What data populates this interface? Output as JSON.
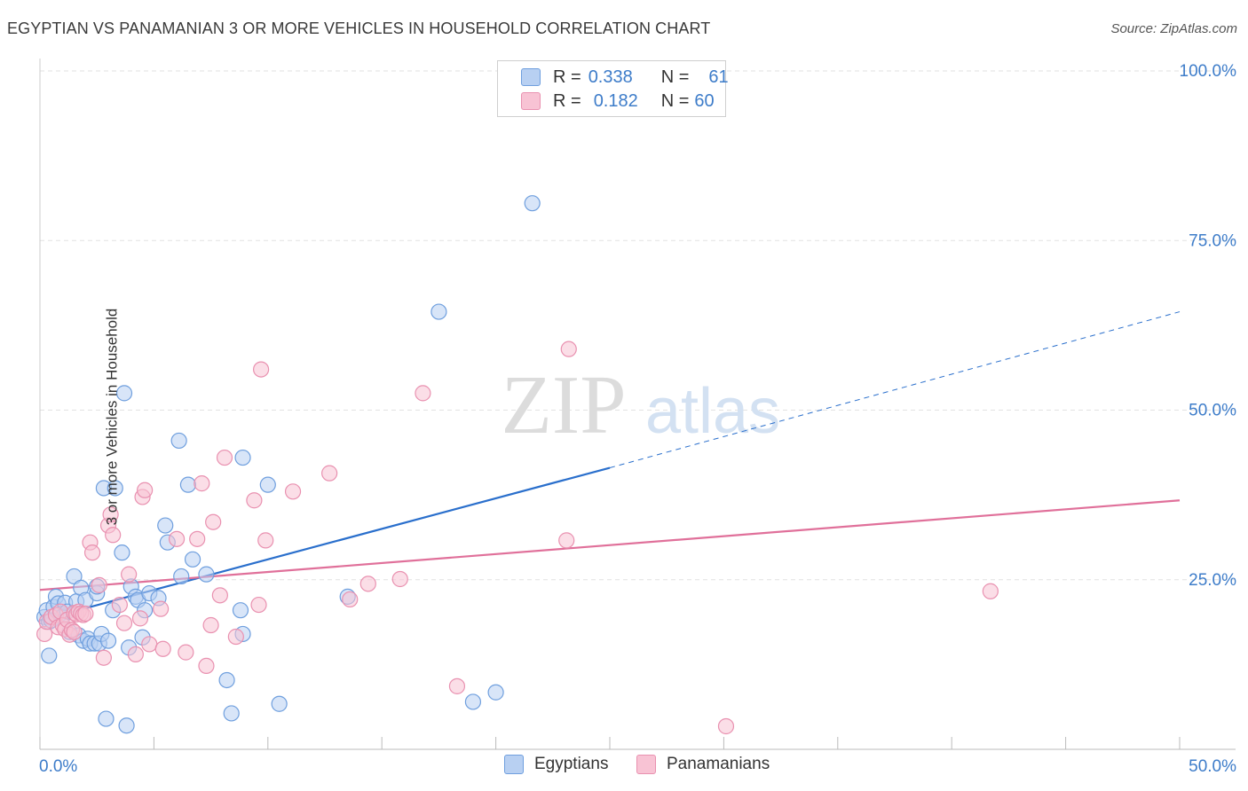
{
  "title": "EGYPTIAN VS PANAMANIAN 3 OR MORE VEHICLES IN HOUSEHOLD CORRELATION CHART",
  "source": "Source: ZipAtlas.com",
  "watermark": {
    "zip": "ZIP",
    "atlas": "atlas"
  },
  "legend": {
    "egyptians": {
      "r_label": "R =",
      "r_value": "0.338",
      "n_label": "N =",
      "n_value": "61"
    },
    "panamanians": {
      "r_label": "R =",
      "r_value": "0.182",
      "n_label": "N =",
      "n_value": "60"
    }
  },
  "colors": {
    "egyptians_fill": "#b8d0f2",
    "egyptians_stroke": "#6f9fde",
    "egyptians_line": "#2a6fcc",
    "panamanians_fill": "#f8c3d4",
    "panamanians_stroke": "#e991b0",
    "panamanians_line": "#e0709a",
    "tick_label": "#3d7cc9",
    "grid": "#e2e2e2"
  },
  "chart_data": {
    "type": "scatter",
    "xlabel": "",
    "ylabel": "3 or more Vehicles in Household",
    "xlim": [
      0,
      50
    ],
    "ylim": [
      0,
      100
    ],
    "x_tick_labels": [
      {
        "value": 0,
        "label": "0.0%"
      },
      {
        "value": 50,
        "label": "50.0%"
      }
    ],
    "y_tick_labels": [
      {
        "value": 25,
        "label": "25.0%"
      },
      {
        "value": 50,
        "label": "50.0%"
      },
      {
        "value": 75,
        "label": "75.0%"
      },
      {
        "value": 100,
        "label": "100.0%"
      }
    ],
    "grid": true,
    "legend_placement": "bottom",
    "series": [
      {
        "name": "Egyptians",
        "points": [
          [
            0.2,
            19.5
          ],
          [
            0.3,
            20.5
          ],
          [
            0.4,
            18.8
          ],
          [
            0.4,
            13.8
          ],
          [
            0.6,
            21
          ],
          [
            0.7,
            22.5
          ],
          [
            0.8,
            21.5
          ],
          [
            0.9,
            20
          ],
          [
            1.0,
            19.6
          ],
          [
            1.1,
            21.6
          ],
          [
            1.2,
            20.3
          ],
          [
            1.3,
            17.3
          ],
          [
            1.5,
            25.5
          ],
          [
            1.6,
            21.8
          ],
          [
            1.7,
            16.8
          ],
          [
            1.8,
            23.8
          ],
          [
            1.9,
            16
          ],
          [
            2.0,
            22
          ],
          [
            2.1,
            16.3
          ],
          [
            2.2,
            15.6
          ],
          [
            2.4,
            15.6
          ],
          [
            2.5,
            23
          ],
          [
            2.5,
            24
          ],
          [
            2.6,
            15.6
          ],
          [
            2.7,
            17
          ],
          [
            2.8,
            38.5
          ],
          [
            2.9,
            4.5
          ],
          [
            3.0,
            16
          ],
          [
            3.2,
            20.5
          ],
          [
            3.3,
            38.5
          ],
          [
            3.6,
            29
          ],
          [
            3.7,
            52.5
          ],
          [
            3.8,
            3.5
          ],
          [
            3.9,
            15
          ],
          [
            4.0,
            24
          ],
          [
            4.2,
            22.5
          ],
          [
            4.3,
            22
          ],
          [
            4.5,
            16.5
          ],
          [
            4.6,
            20.5
          ],
          [
            4.8,
            23
          ],
          [
            5.2,
            22.3
          ],
          [
            5.5,
            33
          ],
          [
            5.6,
            30.5
          ],
          [
            6.1,
            45.5
          ],
          [
            6.2,
            25.5
          ],
          [
            6.5,
            39
          ],
          [
            6.7,
            28
          ],
          [
            7.3,
            25.8
          ],
          [
            8.2,
            10.2
          ],
          [
            8.4,
            5.3
          ],
          [
            8.8,
            20.5
          ],
          [
            8.9,
            17
          ],
          [
            8.9,
            43
          ],
          [
            10.0,
            39
          ],
          [
            10.5,
            6.7
          ],
          [
            13.5,
            22.5
          ],
          [
            17.5,
            64.5
          ],
          [
            19.0,
            7
          ],
          [
            20.0,
            8.4
          ],
          [
            21.6,
            80.5
          ],
          [
            0.5,
            19.0
          ]
        ]
      },
      {
        "name": "Panamanians",
        "points": [
          [
            0.2,
            17
          ],
          [
            0.3,
            18.8
          ],
          [
            0.5,
            19.5
          ],
          [
            0.7,
            19.8
          ],
          [
            0.8,
            18
          ],
          [
            0.9,
            20.3
          ],
          [
            1.0,
            18.3
          ],
          [
            1.1,
            17.7
          ],
          [
            1.2,
            19.1
          ],
          [
            1.3,
            16.9
          ],
          [
            1.4,
            17.6
          ],
          [
            1.5,
            20.1
          ],
          [
            1.6,
            19.9
          ],
          [
            1.7,
            20.3
          ],
          [
            1.8,
            20
          ],
          [
            1.9,
            19.8
          ],
          [
            2.0,
            20
          ],
          [
            2.2,
            30.5
          ],
          [
            2.3,
            29
          ],
          [
            2.6,
            24.2
          ],
          [
            2.8,
            13.5
          ],
          [
            3.0,
            33
          ],
          [
            3.1,
            34.6
          ],
          [
            3.2,
            31.6
          ],
          [
            3.5,
            21.3
          ],
          [
            3.7,
            18.6
          ],
          [
            3.9,
            25.8
          ],
          [
            4.2,
            14
          ],
          [
            4.4,
            19.3
          ],
          [
            4.5,
            37.2
          ],
          [
            4.6,
            38.2
          ],
          [
            4.8,
            15.5
          ],
          [
            5.3,
            20.7
          ],
          [
            5.4,
            14.8
          ],
          [
            6.0,
            31
          ],
          [
            6.4,
            14.3
          ],
          [
            6.9,
            31
          ],
          [
            7.1,
            39.2
          ],
          [
            7.3,
            12.3
          ],
          [
            7.5,
            18.3
          ],
          [
            7.6,
            33.5
          ],
          [
            7.9,
            22.7
          ],
          [
            8.1,
            43
          ],
          [
            8.6,
            16.6
          ],
          [
            9.4,
            36.7
          ],
          [
            9.6,
            21.3
          ],
          [
            9.7,
            56
          ],
          [
            9.9,
            30.8
          ],
          [
            11.1,
            38
          ],
          [
            12.7,
            40.7
          ],
          [
            13.6,
            22.1
          ],
          [
            14.4,
            24.4
          ],
          [
            15.8,
            25.1
          ],
          [
            16.8,
            52.5
          ],
          [
            18.3,
            9.3
          ],
          [
            23.1,
            30.8
          ],
          [
            23.2,
            59
          ],
          [
            30.1,
            3.4
          ],
          [
            41.7,
            23.3
          ],
          [
            1.5,
            17.3
          ]
        ]
      }
    ],
    "trend_lines": [
      {
        "series": "Egyptians",
        "solid": [
          [
            0,
            19
          ],
          [
            25,
            41.5
          ]
        ],
        "dashed": [
          [
            25,
            41.5
          ],
          [
            50,
            64.5
          ]
        ]
      },
      {
        "series": "Panamanians",
        "solid": [
          [
            0,
            23.5
          ],
          [
            50,
            36.7
          ]
        ]
      }
    ]
  },
  "bottom_legend": {
    "egyptians": "Egyptians",
    "panamanians": "Panamanians"
  }
}
